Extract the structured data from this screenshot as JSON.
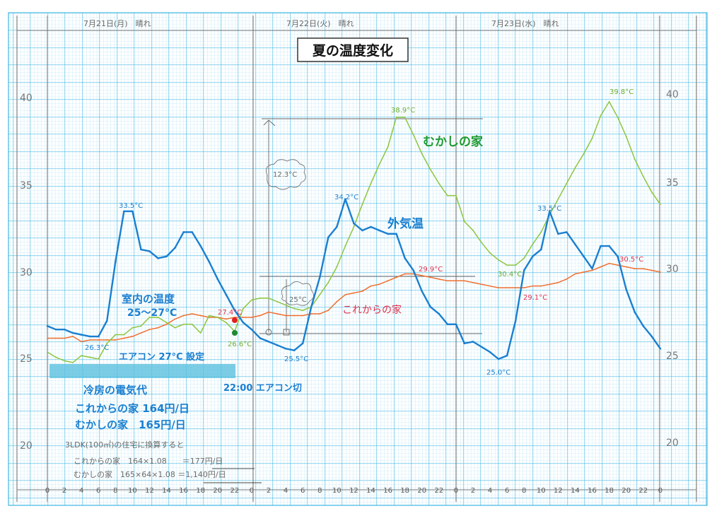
{
  "title": "夏の温度変化",
  "day_headers": [
    "7月21日(月)　晴れ",
    "7月22日(火)　晴れ",
    "7月23日(水)　晴れ"
  ],
  "colors": {
    "outdoor": "#1a7fd0",
    "old_house": "#8cc63f",
    "new_house": "#f07030",
    "grid_major": "#3fb6e3",
    "grid_minor": "#a9def3",
    "highlight": "#5bc0de"
  },
  "series_labels": {
    "old_house": "むかしの家",
    "outdoor": "外気温",
    "new_house": "これからの家"
  },
  "annotations": {
    "indoor_title": "室内の温度",
    "indoor_range": "25〜27°C",
    "ac_setting": "エアコン 27°C 設定",
    "ac_off": "22:00 エアコン切",
    "cost_title": "冷房の電気代",
    "cost_new": "これからの家 164円/日",
    "cost_old": "むかしの家　165円/日",
    "convert_title": "3LDK(100㎡)の住宅に換算すると",
    "convert_new": "これからの家　164×1.08　　＝177円/日",
    "convert_old": "むかしの家　165×64×1.08 ＝1,140円/日",
    "cloud_1": "12.3°C",
    "cloud_2": "25°C"
  },
  "data_labels": [
    {
      "text": "33.5°C",
      "series": "outdoor"
    },
    {
      "text": "26.3°C",
      "series": "outdoor"
    },
    {
      "text": "27.4°C",
      "series": "new_house"
    },
    {
      "text": "26.6°C",
      "series": "old_house"
    },
    {
      "text": "25.5°C",
      "series": "outdoor"
    },
    {
      "text": "34.2°C",
      "series": "outdoor"
    },
    {
      "text": "38.9°C",
      "series": "old_house"
    },
    {
      "text": "29.9°C",
      "series": "new_house"
    },
    {
      "text": "30.4°C",
      "series": "old_house"
    },
    {
      "text": "25.0°C",
      "series": "outdoor"
    },
    {
      "text": "29.1°C",
      "series": "new_house"
    },
    {
      "text": "33.5°C",
      "series": "outdoor"
    },
    {
      "text": "39.8°C",
      "series": "old_house"
    },
    {
      "text": "30.5°C",
      "series": "new_house"
    }
  ],
  "chart_data": {
    "type": "line",
    "title": "夏の温度変化",
    "xlabel": "",
    "ylabel": "",
    "ylim": [
      20,
      40
    ],
    "y_ticks": [
      40,
      35,
      30,
      25,
      20
    ],
    "x_tick_labels": [
      "0",
      "2",
      "4",
      "6",
      "8",
      "10",
      "12",
      "14",
      "16",
      "18",
      "20",
      "22",
      "0",
      "2",
      "4",
      "6",
      "8",
      "10",
      "12",
      "14",
      "16",
      "18",
      "20",
      "22",
      "0",
      "2",
      "4",
      "6",
      "8",
      "10",
      "12",
      "14",
      "16",
      "18",
      "20",
      "22",
      "0"
    ],
    "x_unit": "hour (3 days, hourly)",
    "grid": true,
    "series": [
      {
        "name": "外気温",
        "color": "#1a7fd0",
        "values": [
          26.9,
          26.7,
          26.7,
          26.5,
          26.4,
          26.3,
          26.3,
          27.2,
          30.6,
          33.5,
          33.5,
          31.3,
          31.2,
          30.8,
          30.9,
          31.4,
          32.3,
          32.3,
          31.5,
          30.6,
          29.6,
          28.7,
          27.8,
          27.1,
          26.7,
          26.2,
          26.0,
          25.8,
          25.6,
          25.5,
          25.9,
          28.0,
          29.7,
          32.0,
          32.6,
          34.2,
          32.8,
          32.4,
          32.6,
          32.4,
          32.2,
          32.2,
          30.8,
          30.1,
          28.9,
          28.0,
          27.6,
          27.0,
          27.0,
          25.9,
          26.0,
          25.7,
          25.4,
          25.0,
          25.2,
          27.2,
          30.1,
          30.9,
          31.3,
          33.5,
          32.2,
          32.3,
          31.6,
          30.9,
          30.2,
          31.5,
          31.5,
          30.9,
          29.0,
          27.7,
          26.9,
          26.3,
          25.6
        ]
      },
      {
        "name": "むかしの家",
        "color": "#8cc63f",
        "values": [
          25.4,
          25.1,
          24.9,
          24.8,
          25.2,
          25.1,
          25.0,
          25.9,
          26.4,
          26.4,
          26.8,
          26.9,
          27.4,
          27.4,
          27.1,
          26.8,
          27.0,
          27.0,
          26.5,
          27.5,
          27.4,
          27.1,
          26.6,
          27.9,
          28.4,
          28.5,
          28.5,
          28.3,
          28.1,
          27.9,
          27.8,
          28.0,
          28.7,
          29.4,
          30.3,
          31.5,
          32.6,
          33.9,
          35.1,
          36.2,
          37.2,
          38.9,
          38.9,
          37.9,
          36.8,
          35.9,
          35.1,
          34.4,
          34.4,
          32.9,
          32.4,
          31.7,
          31.1,
          30.7,
          30.4,
          30.4,
          30.8,
          31.6,
          32.3,
          33.3,
          34.2,
          35.1,
          36.0,
          36.8,
          37.7,
          39.0,
          39.8,
          38.9,
          37.8,
          36.5,
          35.5,
          34.6,
          33.9
        ]
      },
      {
        "name": "これからの家",
        "color": "#f07030",
        "values": [
          26.2,
          26.2,
          26.2,
          26.3,
          26.0,
          26.1,
          26.1,
          26.1,
          26.1,
          26.2,
          26.3,
          26.5,
          26.7,
          26.8,
          27.0,
          27.3,
          27.5,
          27.6,
          27.5,
          27.4,
          27.4,
          27.3,
          27.4,
          27.4,
          27.4,
          27.5,
          27.7,
          27.6,
          27.5,
          27.5,
          27.5,
          27.6,
          27.6,
          27.8,
          28.3,
          28.7,
          28.8,
          28.9,
          29.2,
          29.3,
          29.5,
          29.7,
          29.9,
          29.9,
          29.8,
          29.7,
          29.6,
          29.5,
          29.5,
          29.5,
          29.4,
          29.3,
          29.2,
          29.1,
          29.1,
          29.1,
          29.1,
          29.2,
          29.2,
          29.3,
          29.4,
          29.6,
          29.9,
          30.0,
          30.1,
          30.3,
          30.5,
          30.4,
          30.3,
          30.2,
          30.2,
          30.1,
          30.0
        ]
      }
    ]
  }
}
